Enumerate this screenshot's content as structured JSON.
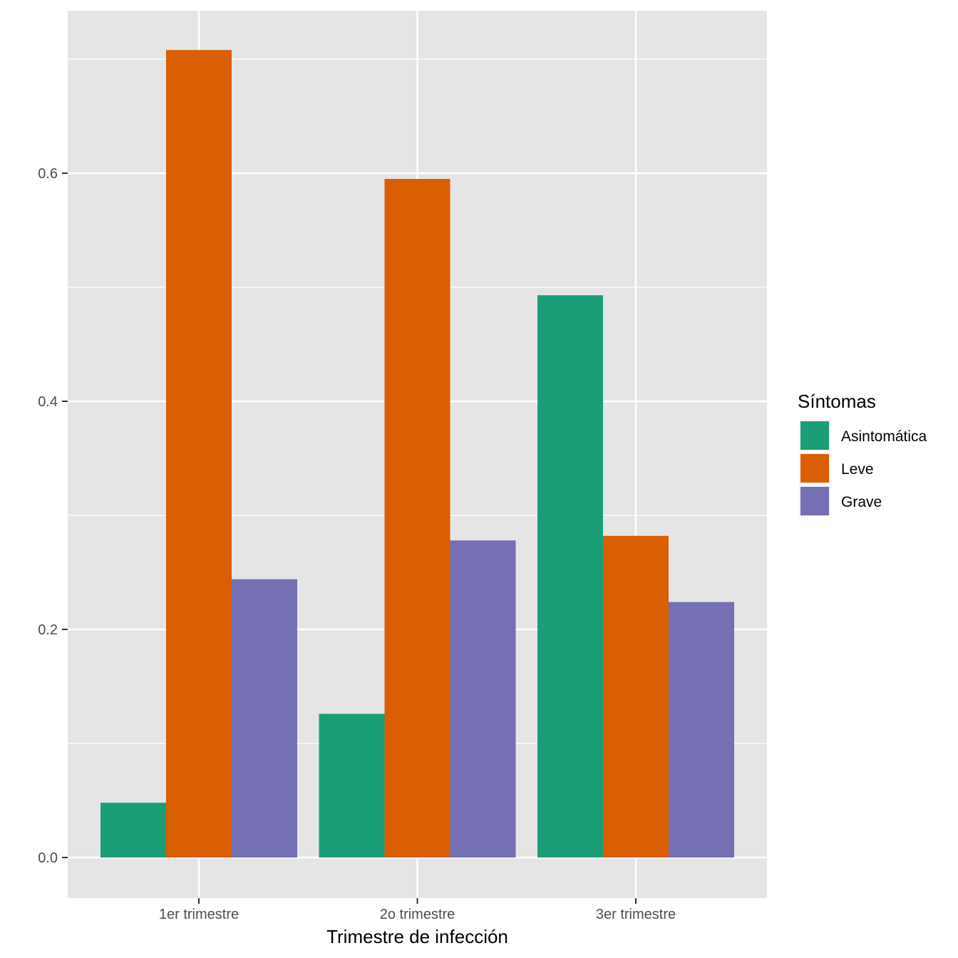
{
  "chart_data": {
    "type": "bar",
    "xlabel": "Trimestre de infección",
    "ylabel": "",
    "categories": [
      "1er trimestre",
      "2o trimestre",
      "3er trimestre"
    ],
    "ylim": [
      -0.035,
      0.745
    ],
    "yticks": [
      0.0,
      0.2,
      0.4,
      0.6
    ],
    "ytick_labels": [
      "0.0",
      "0.2",
      "0.4",
      "0.6"
    ],
    "grid": true,
    "legend": {
      "title": "Síntomas",
      "position": "right"
    },
    "series": [
      {
        "name": "Asintomática",
        "color": "#1B9E77",
        "values": [
          0.048,
          0.126,
          0.493
        ]
      },
      {
        "name": "Leve",
        "color": "#D95F02",
        "values": [
          0.708,
          0.595,
          0.282
        ]
      },
      {
        "name": "Grave",
        "color": "#7570B3",
        "values": [
          0.244,
          0.278,
          0.224
        ]
      }
    ]
  }
}
